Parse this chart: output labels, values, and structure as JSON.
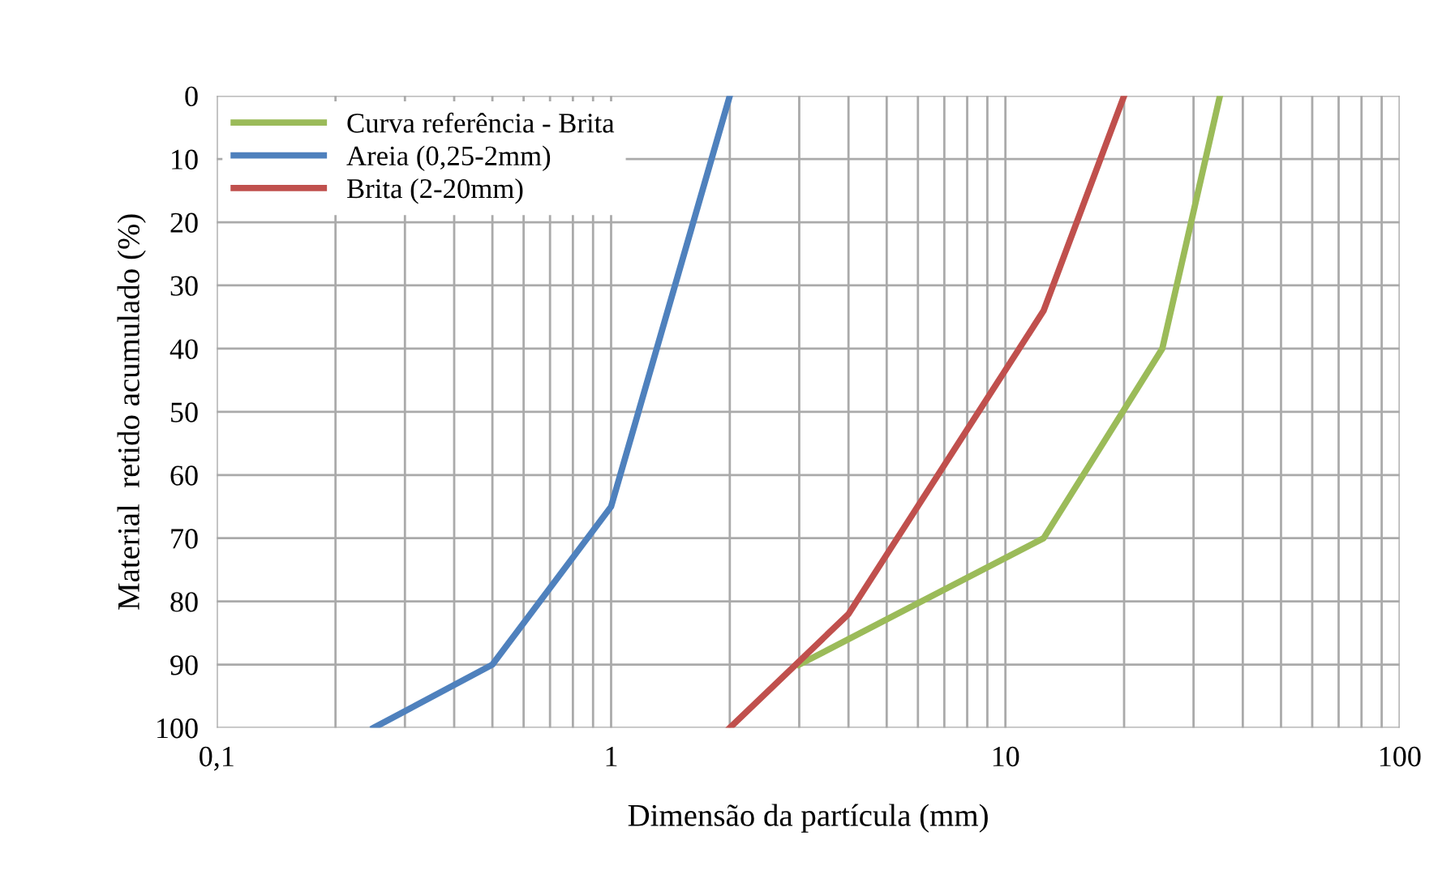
{
  "chart_data": {
    "type": "line",
    "xlabel": "Dimensão da partícula (mm)",
    "ylabel": "Material  retido acumulado (%)",
    "log": "x",
    "xlim": [
      0.1,
      100
    ],
    "ylim": [
      100,
      0
    ],
    "xticks": [
      {
        "value": 0.1,
        "label": "0,1"
      },
      {
        "value": 0.2,
        "label": null
      },
      {
        "value": 0.3,
        "label": null
      },
      {
        "value": 0.4,
        "label": null
      },
      {
        "value": 0.5,
        "label": null
      },
      {
        "value": 0.6,
        "label": null
      },
      {
        "value": 0.7,
        "label": null
      },
      {
        "value": 0.8,
        "label": null
      },
      {
        "value": 0.9,
        "label": null
      },
      1,
      {
        "value": 2,
        "label": null
      },
      {
        "value": 3,
        "label": null
      },
      {
        "value": 4,
        "label": null
      },
      {
        "value": 5,
        "label": null
      },
      {
        "value": 6,
        "label": null
      },
      {
        "value": 7,
        "label": null
      },
      {
        "value": 8,
        "label": null
      },
      {
        "value": 9,
        "label": null
      },
      10,
      {
        "value": 20,
        "label": null
      },
      {
        "value": 30,
        "label": null
      },
      {
        "value": 40,
        "label": null
      },
      {
        "value": 50,
        "label": null
      },
      {
        "value": 60,
        "label": null
      },
      {
        "value": 70,
        "label": null
      },
      {
        "value": 80,
        "label": null
      },
      {
        "value": 90,
        "label": null
      },
      100
    ],
    "yticks": [
      0,
      10,
      20,
      30,
      40,
      50,
      60,
      70,
      80,
      90,
      100
    ],
    "grid": true,
    "legend": "top left",
    "marker": "none",
    "line_style": "solid",
    "series": [
      {
        "name": "Curva referência - Brita",
        "color": "#9bbb59",
        "x": [
          3,
          12.5,
          25,
          35
        ],
        "values": [
          90,
          70,
          40,
          0
        ]
      },
      {
        "name": "Areia (0,25-2mm)",
        "color": "#4f81bd",
        "x": [
          0.25,
          0.5,
          1,
          2
        ],
        "values": [
          100,
          90,
          65,
          0
        ]
      },
      {
        "name": "Brita (2-20mm)",
        "color": "#c0504d",
        "x": [
          2,
          4,
          12.5,
          20
        ],
        "values": [
          100,
          82,
          34,
          0
        ]
      }
    ]
  }
}
